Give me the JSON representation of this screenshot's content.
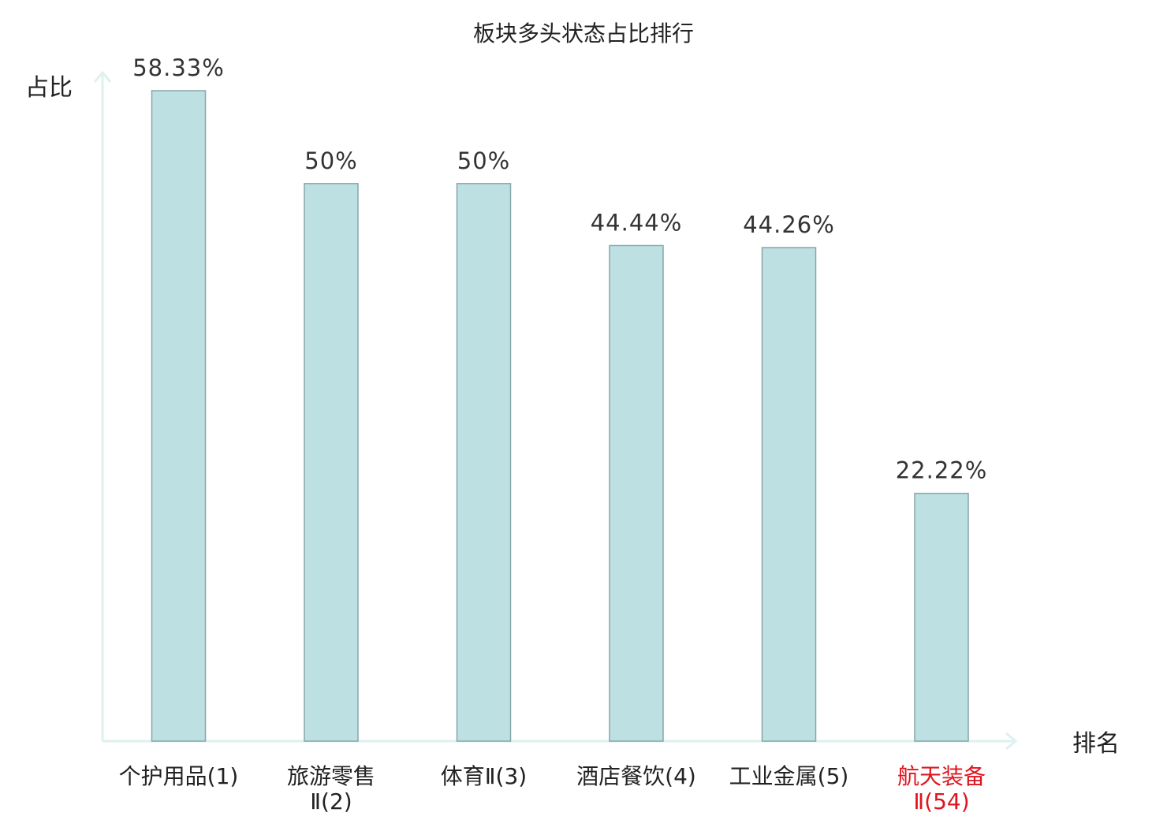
{
  "colors": {
    "bar_fill": "#bde1e3",
    "bar_stroke": "#87a6a8",
    "axis": "#ddf1ee",
    "label_default": "#222222",
    "label_highlight": "#e0141e"
  },
  "chart_data": {
    "type": "bar",
    "title": "板块多头状态占比排行",
    "ylabel": "占比",
    "xlabel": "排名",
    "ylim": [
      0,
      60
    ],
    "grid": false,
    "legend": "none",
    "categories": [
      {
        "lines": [
          "个护用品(1)"
        ],
        "highlight": false
      },
      {
        "lines": [
          "旅游零售",
          "Ⅱ(2)"
        ],
        "highlight": false
      },
      {
        "lines": [
          "体育Ⅱ(3)"
        ],
        "highlight": false
      },
      {
        "lines": [
          "酒店餐饮(4)"
        ],
        "highlight": false
      },
      {
        "lines": [
          "工业金属(5)"
        ],
        "highlight": false
      },
      {
        "lines": [
          "航天装备",
          "Ⅱ(54)"
        ],
        "highlight": true
      }
    ],
    "values": [
      58.33,
      50,
      50,
      44.44,
      44.26,
      22.22
    ],
    "value_labels": [
      "58.33%",
      "50%",
      "50%",
      "44.44%",
      "44.26%",
      "22.22%"
    ]
  }
}
